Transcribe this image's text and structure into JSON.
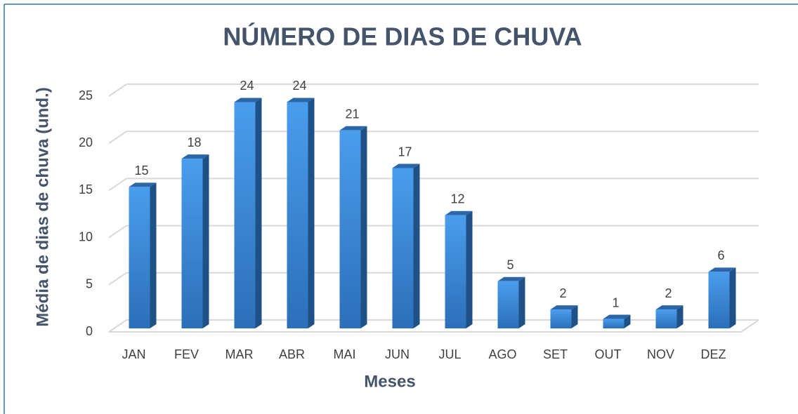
{
  "chart_data": {
    "type": "bar",
    "title": "NÚMERO DE DIAS DE CHUVA",
    "x_label": "Meses",
    "y_label": "Média de dias de chuva (und.)",
    "categories": [
      "JAN",
      "FEV",
      "MAR",
      "ABR",
      "MAI",
      "JUN",
      "JUL",
      "AGO",
      "SET",
      "OUT",
      "NOV",
      "DEZ"
    ],
    "values": [
      15,
      18,
      24,
      24,
      21,
      17,
      12,
      5,
      2,
      1,
      2,
      6
    ],
    "color": "#3a8ae0",
    "ylim": [
      0,
      25
    ],
    "yticks": [
      0,
      5,
      10,
      15,
      20,
      25
    ],
    "grid": true
  }
}
